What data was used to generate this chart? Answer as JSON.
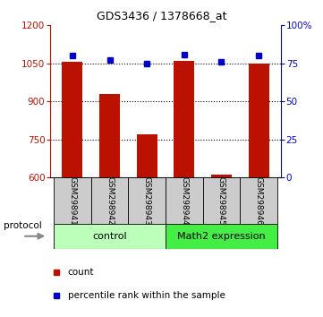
{
  "title": "GDS3436 / 1378668_at",
  "samples": [
    "GSM298941",
    "GSM298942",
    "GSM298943",
    "GSM298944",
    "GSM298945",
    "GSM298946"
  ],
  "counts": [
    1055,
    930,
    770,
    1060,
    610,
    1050
  ],
  "percentile_ranks": [
    80,
    77,
    75,
    81,
    76,
    80
  ],
  "group_control_indices": [
    0,
    1,
    2
  ],
  "group_math2_indices": [
    3,
    4,
    5
  ],
  "group_control_label": "control",
  "group_math2_label": "Math2 expression",
  "group_control_color": "#bbffbb",
  "group_math2_color": "#44ee44",
  "ylim_left": [
    600,
    1200
  ],
  "ylim_right": [
    0,
    100
  ],
  "yticks_left": [
    600,
    750,
    900,
    1050,
    1200
  ],
  "yticks_right": [
    0,
    25,
    50,
    75,
    100
  ],
  "ytick_labels_right": [
    "0",
    "25",
    "50",
    "75",
    "100%"
  ],
  "bar_color": "#bb1100",
  "marker_color": "#0000cc",
  "bar_width": 0.55,
  "background_label": "#cccccc",
  "gridline_color": "#000000",
  "legend_count_color": "#bb1100",
  "legend_rank_color": "#0000cc",
  "title_fontsize": 9,
  "tick_fontsize": 7.5,
  "label_fontsize": 6.5,
  "group_fontsize": 8,
  "legend_fontsize": 7.5
}
